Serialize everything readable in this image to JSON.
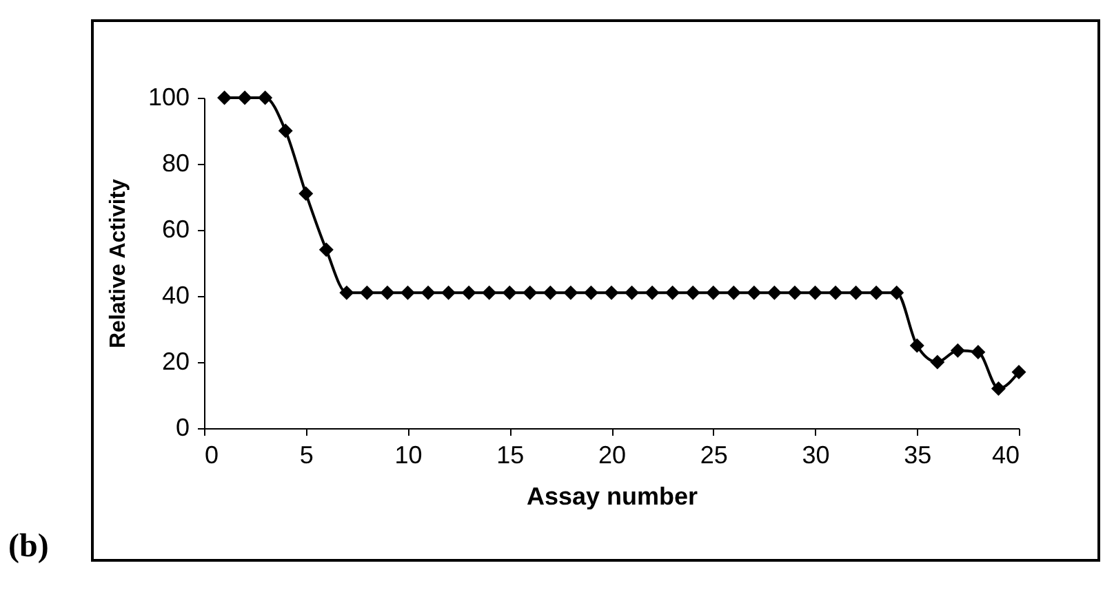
{
  "chart_data": {
    "type": "line",
    "xlabel": "Assay number",
    "ylabel": "Relative Activity",
    "annotations": [
      "(b)"
    ],
    "x": [
      1,
      2,
      3,
      4,
      5,
      6,
      7,
      8,
      9,
      10,
      11,
      12,
      13,
      14,
      15,
      16,
      17,
      18,
      19,
      20,
      21,
      22,
      23,
      24,
      25,
      26,
      27,
      28,
      29,
      30,
      31,
      32,
      33,
      34,
      35,
      36,
      37,
      38,
      39,
      40
    ],
    "series": [
      {
        "color": "#000000",
        "values": [
          100,
          100,
          100,
          90,
          71,
          54,
          41,
          41,
          41,
          41,
          41,
          41,
          41,
          41,
          41,
          41,
          41,
          41,
          41,
          41,
          41,
          41,
          41,
          41,
          41,
          41,
          41,
          41,
          41,
          41,
          41,
          41,
          41,
          41,
          25,
          20,
          23.5,
          23,
          12,
          17
        ]
      }
    ],
    "xlim": [
      0,
      40
    ],
    "xticks": [
      0,
      5,
      10,
      15,
      20,
      25,
      30,
      35,
      40
    ],
    "ylim": [
      0,
      100
    ],
    "yticks": [
      0,
      20,
      40,
      60,
      80,
      100
    ],
    "grid": false,
    "marker": "diamond",
    "line_style": "solid"
  }
}
